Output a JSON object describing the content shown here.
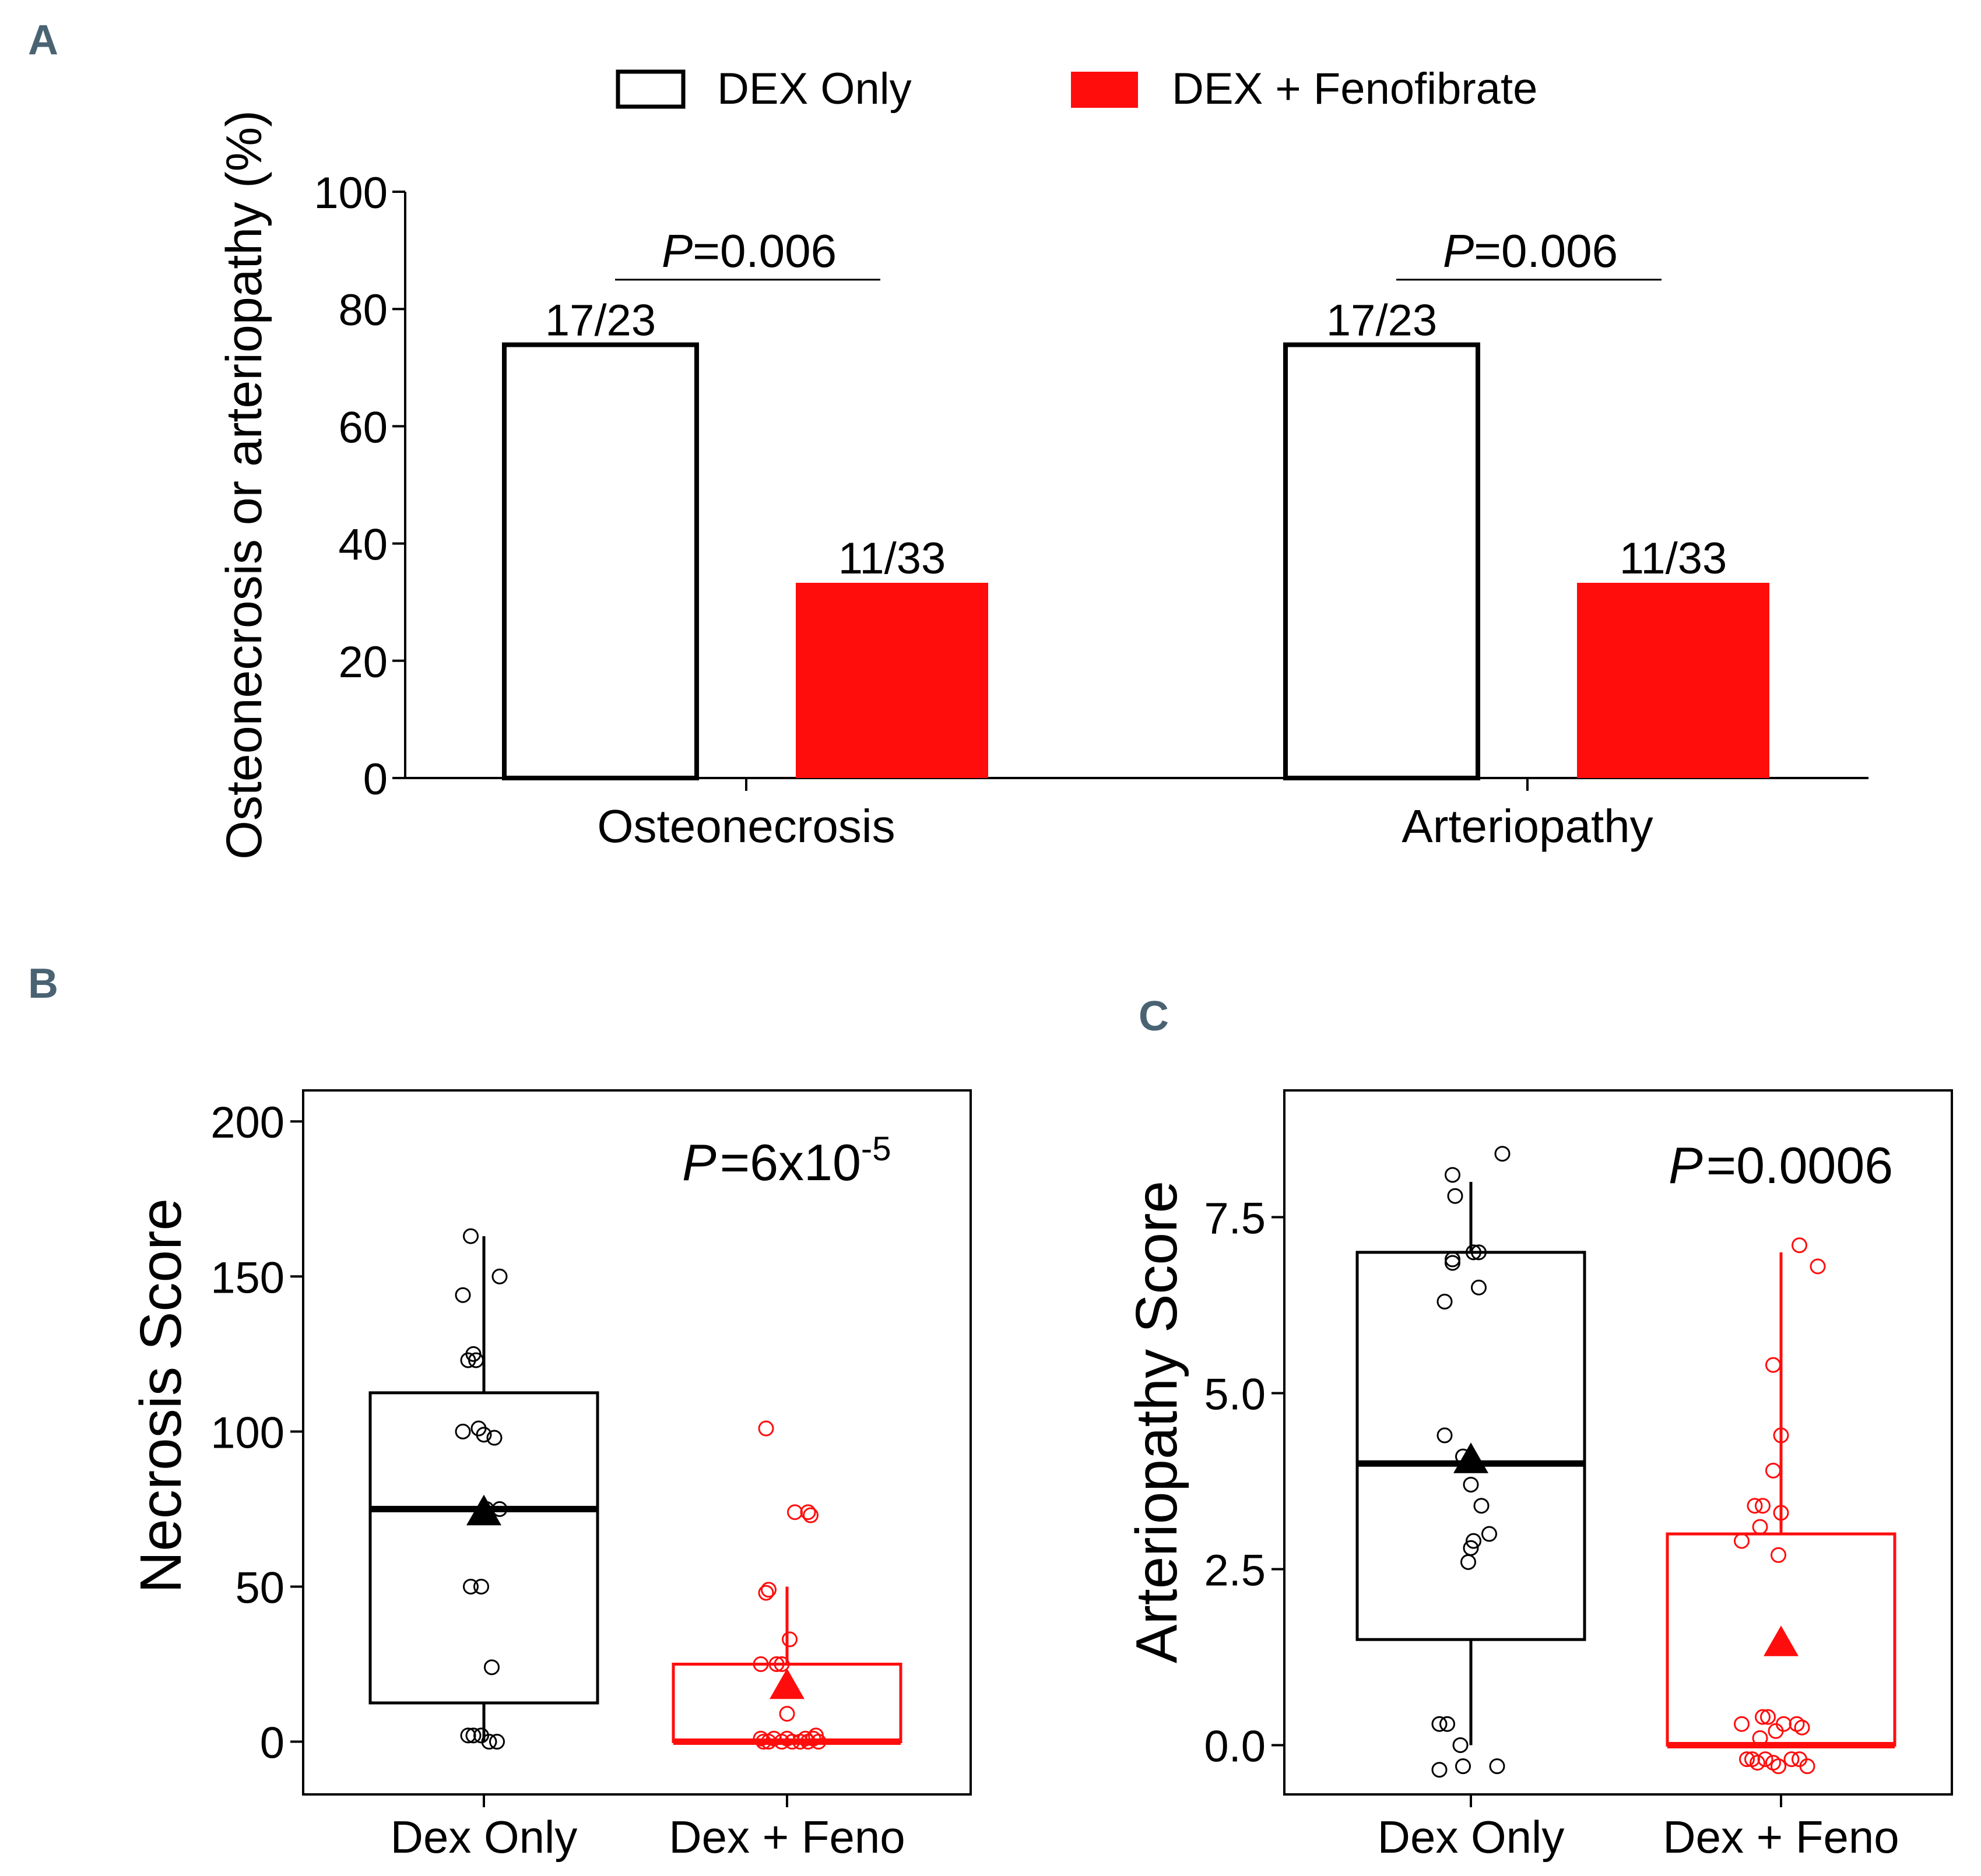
{
  "colors": {
    "dex_only": "#000000",
    "dex_feno": "#ff0d0d",
    "panel_letter": "#4a6373"
  },
  "panels": {
    "a": "A",
    "b": "B",
    "c": "C"
  },
  "chart_data": [
    {
      "type": "bar",
      "panel": "A",
      "legend": [
        "DEX Only",
        "DEX + Fenofibrate"
      ],
      "legend_position": "top",
      "ylabel": "Osteonecrosis or arteriopathy (%)",
      "ylim": [
        0,
        100
      ],
      "yticks": [
        0,
        20,
        40,
        60,
        80,
        100
      ],
      "categories": [
        "Osteonecrosis",
        "Arteriopathy"
      ],
      "series": [
        {
          "name": "DEX Only",
          "values": [
            73.9,
            73.9
          ],
          "labels": [
            "17/23",
            "17/23"
          ]
        },
        {
          "name": "DEX + Fenofibrate",
          "values": [
            33.3,
            33.3
          ],
          "labels": [
            "11/33",
            "11/33"
          ]
        }
      ],
      "annotations": [
        {
          "category": "Osteonecrosis",
          "p_italic": "P",
          "p_value": "=0.006"
        },
        {
          "category": "Arteriopathy",
          "p_italic": "P",
          "p_value": "=0.006"
        }
      ]
    },
    {
      "type": "box",
      "panel": "B",
      "ylabel": "Necrosis Score",
      "ylim": [
        -17,
        210
      ],
      "yticks": [
        0,
        50,
        100,
        150,
        200
      ],
      "categories": [
        "Dex Only",
        "Dex + Feno"
      ],
      "annotation": {
        "p_italic": "P",
        "p_value": "=6x10",
        "p_exp": "-5"
      },
      "groups": [
        {
          "name": "Dex Only",
          "q1": 12.5,
          "median": 75,
          "q3": 112.5,
          "whisker_low": 0,
          "whisker_high": 163,
          "mean": 74,
          "points": [
            [
              -0.05,
              163
            ],
            [
              0.06,
              150
            ],
            [
              -0.08,
              144
            ],
            [
              -0.04,
              125
            ],
            [
              -0.06,
              123
            ],
            [
              -0.03,
              123
            ],
            [
              -0.08,
              100
            ],
            [
              -0.02,
              101
            ],
            [
              0,
              99
            ],
            [
              0.04,
              98
            ],
            [
              0.01,
              75
            ],
            [
              0.06,
              75
            ],
            [
              -0.05,
              50
            ],
            [
              -0.01,
              50
            ],
            [
              0.03,
              24
            ],
            [
              -0.06,
              2
            ],
            [
              -0.04,
              2
            ],
            [
              -0.01,
              2
            ],
            [
              0.02,
              0
            ],
            [
              0.05,
              0
            ]
          ]
        },
        {
          "name": "Dex + Feno",
          "q1": 0,
          "median": 0,
          "q3": 25,
          "whisker_low": 0,
          "whisker_high": 50,
          "mean": 18,
          "points": [
            [
              -0.08,
              101
            ],
            [
              0.03,
              74
            ],
            [
              0.08,
              74
            ],
            [
              0.09,
              73
            ],
            [
              -0.07,
              49
            ],
            [
              -0.08,
              48
            ],
            [
              0.01,
              33
            ],
            [
              -0.1,
              25
            ],
            [
              -0.04,
              25
            ],
            [
              -0.02,
              25
            ],
            [
              0,
              9
            ],
            [
              -0.1,
              1
            ],
            [
              -0.07,
              0
            ],
            [
              -0.05,
              1
            ],
            [
              -0.02,
              0
            ],
            [
              0,
              1
            ],
            [
              0.02,
              0
            ],
            [
              0.05,
              0
            ],
            [
              0.07,
              1
            ],
            [
              0.1,
              1
            ],
            [
              0.12,
              0
            ],
            [
              0.11,
              2
            ],
            [
              -0.09,
              0
            ],
            [
              0.08,
              0
            ]
          ]
        }
      ]
    },
    {
      "type": "box",
      "panel": "C",
      "ylabel": "Arteriopathy Score",
      "ylim": [
        -0.7,
        9.3
      ],
      "yticks": [
        0.0,
        2.5,
        5.0,
        7.5
      ],
      "ytick_labels": [
        "0.0",
        "2.5",
        "5.0",
        "7.5"
      ],
      "categories": [
        "Dex Only",
        "Dex + Feno"
      ],
      "annotation": {
        "p_italic": "P",
        "p_value": "=0.0006"
      },
      "groups": [
        {
          "name": "Dex Only",
          "q1": 1.5,
          "median": 4,
          "q3": 7,
          "whisker_low": 0,
          "whisker_high": 8,
          "mean": 4.05,
          "points": [
            [
              0.12,
              8.4
            ],
            [
              -0.07,
              8.1
            ],
            [
              -0.06,
              7.8
            ],
            [
              -0.07,
              6.9
            ],
            [
              -0.07,
              6.85
            ],
            [
              0.01,
              7
            ],
            [
              0.03,
              7
            ],
            [
              -0.1,
              6.3
            ],
            [
              0.03,
              6.5
            ],
            [
              -0.1,
              4.4
            ],
            [
              -0.03,
              4.1
            ],
            [
              0,
              3.7
            ],
            [
              0.04,
              3.4
            ],
            [
              0.01,
              2.9
            ],
            [
              0.07,
              3
            ],
            [
              0,
              2.8
            ],
            [
              -0.01,
              2.6
            ],
            [
              -0.12,
              0.3
            ],
            [
              -0.09,
              0.3
            ],
            [
              -0.04,
              0
            ],
            [
              -0.03,
              -0.3
            ],
            [
              0.1,
              -0.3
            ],
            [
              -0.12,
              -0.35
            ]
          ]
        },
        {
          "name": "Dex + Feno",
          "q1": 0,
          "median": 0,
          "q3": 3,
          "whisker_low": 0,
          "whisker_high": 7,
          "mean": 1.45,
          "points": [
            [
              0.07,
              7.1
            ],
            [
              0.14,
              6.8
            ],
            [
              -0.03,
              5.4
            ],
            [
              0,
              4.4
            ],
            [
              -0.03,
              3.9
            ],
            [
              -0.07,
              3.4
            ],
            [
              -0.1,
              3.4
            ],
            [
              0,
              3.3
            ],
            [
              -0.08,
              3.1
            ],
            [
              -0.15,
              2.9
            ],
            [
              -0.01,
              2.7
            ],
            [
              -0.15,
              0.3
            ],
            [
              -0.07,
              0.4
            ],
            [
              -0.05,
              0.4
            ],
            [
              0.01,
              0.3
            ],
            [
              0.06,
              0.3
            ],
            [
              0.08,
              0.25
            ],
            [
              -0.02,
              0.2
            ],
            [
              -0.08,
              0.1
            ],
            [
              -0.13,
              -0.2
            ],
            [
              -0.11,
              -0.2
            ],
            [
              -0.09,
              -0.25
            ],
            [
              -0.06,
              -0.2
            ],
            [
              -0.03,
              -0.25
            ],
            [
              -0.01,
              -0.3
            ],
            [
              0.04,
              -0.2
            ],
            [
              0.07,
              -0.2
            ],
            [
              0.1,
              -0.3
            ]
          ]
        }
      ]
    }
  ]
}
